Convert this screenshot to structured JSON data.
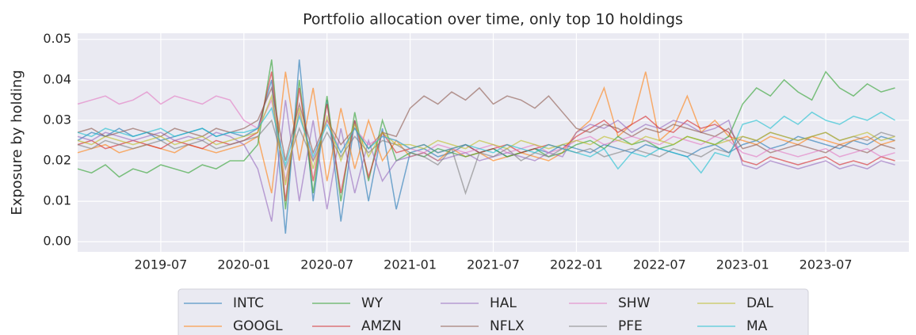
{
  "chart_data": {
    "type": "line",
    "title": "Portfolio allocation over time, only top 10 holdings",
    "ylabel": "Exposure by holding",
    "x": [
      "2019-01",
      "2019-02",
      "2019-03",
      "2019-04",
      "2019-05",
      "2019-06",
      "2019-07",
      "2019-08",
      "2019-09",
      "2019-10",
      "2019-11",
      "2019-12",
      "2020-01",
      "2020-02",
      "2020-03",
      "2020-04",
      "2020-05",
      "2020-06",
      "2020-07",
      "2020-08",
      "2020-09",
      "2020-10",
      "2020-11",
      "2020-12",
      "2021-01",
      "2021-02",
      "2021-03",
      "2021-04",
      "2021-05",
      "2021-06",
      "2021-07",
      "2021-08",
      "2021-09",
      "2021-10",
      "2021-11",
      "2021-12",
      "2022-01",
      "2022-02",
      "2022-03",
      "2022-04",
      "2022-05",
      "2022-06",
      "2022-07",
      "2022-08",
      "2022-09",
      "2022-10",
      "2022-11",
      "2022-12",
      "2023-01",
      "2023-02",
      "2023-03",
      "2023-04",
      "2023-05",
      "2023-06",
      "2023-07",
      "2023-08",
      "2023-09",
      "2023-10",
      "2023-11",
      "2023-12"
    ],
    "xlim": [
      "2019-01",
      "2024-01"
    ],
    "xticks": [
      "2019-07",
      "2020-01",
      "2020-07",
      "2021-01",
      "2021-07",
      "2022-01",
      "2022-07",
      "2023-01",
      "2023-07"
    ],
    "ylim": [
      -0.0025,
      0.0515
    ],
    "yticks": [
      {
        "value": 0,
        "label": "0.00"
      },
      0.01,
      0.02,
      0.03,
      0.04,
      0.05
    ],
    "grid": true,
    "legend": "lower center",
    "series": [
      {
        "name": "INTC",
        "color": "#1f77b4",
        "values": [
          0.025,
          0.027,
          0.026,
          0.028,
          0.026,
          0.027,
          0.025,
          0.026,
          0.027,
          0.028,
          0.026,
          0.027,
          0.026,
          0.028,
          0.04,
          0.002,
          0.045,
          0.01,
          0.035,
          0.005,
          0.03,
          0.01,
          0.028,
          0.008,
          0.022,
          0.023,
          0.021,
          0.022,
          0.024,
          0.022,
          0.023,
          0.021,
          0.022,
          0.023,
          0.022,
          0.024,
          0.023,
          0.022,
          0.024,
          0.023,
          0.022,
          0.024,
          0.023,
          0.022,
          0.021,
          0.023,
          0.024,
          0.022,
          0.024,
          0.025,
          0.023,
          0.024,
          0.026,
          0.025,
          0.024,
          0.023,
          0.025,
          0.024,
          0.026,
          0.025
        ]
      },
      {
        "name": "GOOGL",
        "color": "#ff7f0e",
        "values": [
          0.022,
          0.023,
          0.024,
          0.022,
          0.023,
          0.024,
          0.023,
          0.022,
          0.024,
          0.023,
          0.022,
          0.023,
          0.024,
          0.026,
          0.012,
          0.042,
          0.02,
          0.038,
          0.015,
          0.033,
          0.018,
          0.03,
          0.02,
          0.025,
          0.021,
          0.022,
          0.02,
          0.023,
          0.021,
          0.022,
          0.02,
          0.021,
          0.022,
          0.021,
          0.02,
          0.022,
          0.027,
          0.03,
          0.038,
          0.026,
          0.029,
          0.042,
          0.025,
          0.028,
          0.036,
          0.027,
          0.03,
          0.026,
          0.025,
          0.024,
          0.026,
          0.025,
          0.024,
          0.026,
          0.025,
          0.024,
          0.025,
          0.026,
          0.024,
          0.025
        ]
      },
      {
        "name": "WY",
        "color": "#2ca02c",
        "values": [
          0.018,
          0.017,
          0.019,
          0.016,
          0.018,
          0.017,
          0.019,
          0.018,
          0.017,
          0.019,
          0.018,
          0.02,
          0.02,
          0.024,
          0.045,
          0.008,
          0.04,
          0.012,
          0.036,
          0.01,
          0.032,
          0.015,
          0.03,
          0.02,
          0.022,
          0.021,
          0.023,
          0.022,
          0.021,
          0.022,
          0.023,
          0.021,
          0.022,
          0.023,
          0.021,
          0.022,
          0.024,
          0.025,
          0.023,
          0.026,
          0.024,
          0.025,
          0.023,
          0.024,
          0.026,
          0.025,
          0.024,
          0.026,
          0.034,
          0.038,
          0.036,
          0.04,
          0.037,
          0.035,
          0.042,
          0.038,
          0.036,
          0.039,
          0.037,
          0.038
        ]
      },
      {
        "name": "AMZN",
        "color": "#d62728",
        "values": [
          0.024,
          0.025,
          0.023,
          0.024,
          0.025,
          0.024,
          0.023,
          0.025,
          0.024,
          0.023,
          0.025,
          0.024,
          0.025,
          0.027,
          0.042,
          0.01,
          0.038,
          0.015,
          0.034,
          0.012,
          0.03,
          0.016,
          0.027,
          0.022,
          0.023,
          0.024,
          0.022,
          0.023,
          0.024,
          0.022,
          0.023,
          0.024,
          0.022,
          0.023,
          0.024,
          0.023,
          0.026,
          0.028,
          0.03,
          0.027,
          0.029,
          0.031,
          0.028,
          0.027,
          0.03,
          0.028,
          0.029,
          0.027,
          0.02,
          0.019,
          0.021,
          0.02,
          0.019,
          0.02,
          0.021,
          0.019,
          0.02,
          0.019,
          0.021,
          0.02
        ]
      },
      {
        "name": "HAL",
        "color": "#9467bd",
        "values": [
          0.026,
          0.025,
          0.027,
          0.026,
          0.025,
          0.026,
          0.027,
          0.025,
          0.026,
          0.025,
          0.027,
          0.026,
          0.024,
          0.018,
          0.005,
          0.035,
          0.01,
          0.03,
          0.008,
          0.028,
          0.012,
          0.025,
          0.015,
          0.02,
          0.021,
          0.022,
          0.02,
          0.021,
          0.022,
          0.02,
          0.021,
          0.022,
          0.021,
          0.02,
          0.022,
          0.021,
          0.027,
          0.029,
          0.028,
          0.03,
          0.027,
          0.029,
          0.028,
          0.03,
          0.029,
          0.027,
          0.028,
          0.03,
          0.019,
          0.018,
          0.02,
          0.019,
          0.018,
          0.019,
          0.02,
          0.018,
          0.019,
          0.018,
          0.02,
          0.019
        ]
      },
      {
        "name": "NFLX",
        "color": "#8c564b",
        "values": [
          0.027,
          0.028,
          0.026,
          0.027,
          0.028,
          0.027,
          0.026,
          0.028,
          0.027,
          0.026,
          0.028,
          0.027,
          0.028,
          0.03,
          0.038,
          0.02,
          0.034,
          0.022,
          0.03,
          0.024,
          0.028,
          0.023,
          0.027,
          0.026,
          0.033,
          0.036,
          0.034,
          0.037,
          0.035,
          0.038,
          0.034,
          0.036,
          0.035,
          0.033,
          0.036,
          0.032,
          0.028,
          0.027,
          0.029,
          0.028,
          0.026,
          0.028,
          0.027,
          0.029,
          0.028,
          0.027,
          0.026,
          0.028,
          0.023,
          0.024,
          0.022,
          0.023,
          0.024,
          0.023,
          0.022,
          0.024,
          0.023,
          0.022,
          0.024,
          0.023
        ]
      },
      {
        "name": "SHW",
        "color": "#e377c2",
        "values": [
          0.034,
          0.035,
          0.036,
          0.034,
          0.035,
          0.037,
          0.034,
          0.036,
          0.035,
          0.034,
          0.036,
          0.035,
          0.03,
          0.028,
          0.035,
          0.015,
          0.032,
          0.02,
          0.03,
          0.022,
          0.028,
          0.024,
          0.026,
          0.025,
          0.023,
          0.022,
          0.024,
          0.023,
          0.022,
          0.023,
          0.024,
          0.022,
          0.023,
          0.024,
          0.022,
          0.023,
          0.025,
          0.026,
          0.024,
          0.025,
          0.026,
          0.025,
          0.024,
          0.026,
          0.025,
          0.024,
          0.026,
          0.025,
          0.022,
          0.021,
          0.023,
          0.022,
          0.021,
          0.022,
          0.023,
          0.021,
          0.022,
          0.023,
          0.021,
          0.022
        ]
      },
      {
        "name": "PFE",
        "color": "#7f7f7f",
        "values": [
          0.024,
          0.023,
          0.025,
          0.024,
          0.023,
          0.024,
          0.025,
          0.023,
          0.024,
          0.025,
          0.023,
          0.024,
          0.025,
          0.026,
          0.03,
          0.018,
          0.028,
          0.02,
          0.027,
          0.021,
          0.026,
          0.022,
          0.025,
          0.024,
          0.022,
          0.021,
          0.019,
          0.023,
          0.012,
          0.022,
          0.021,
          0.023,
          0.02,
          0.022,
          0.021,
          0.023,
          0.022,
          0.023,
          0.021,
          0.022,
          0.023,
          0.022,
          0.021,
          0.023,
          0.022,
          0.021,
          0.023,
          0.022,
          0.026,
          0.025,
          0.027,
          0.026,
          0.025,
          0.026,
          0.027,
          0.025,
          0.026,
          0.025,
          0.027,
          0.026
        ]
      },
      {
        "name": "DAL",
        "color": "#bcbd22",
        "values": [
          0.025,
          0.024,
          0.026,
          0.025,
          0.024,
          0.025,
          0.026,
          0.024,
          0.025,
          0.026,
          0.024,
          0.025,
          0.026,
          0.027,
          0.036,
          0.014,
          0.033,
          0.018,
          0.031,
          0.02,
          0.029,
          0.021,
          0.027,
          0.024,
          0.024,
          0.023,
          0.025,
          0.024,
          0.023,
          0.025,
          0.024,
          0.023,
          0.025,
          0.024,
          0.023,
          0.024,
          0.025,
          0.024,
          0.026,
          0.025,
          0.024,
          0.026,
          0.025,
          0.024,
          0.026,
          0.025,
          0.024,
          0.025,
          0.026,
          0.025,
          0.027,
          0.026,
          0.025,
          0.026,
          0.027,
          0.025,
          0.026,
          0.027,
          0.025,
          0.026
        ]
      },
      {
        "name": "MA",
        "color": "#17becf",
        "values": [
          0.027,
          0.026,
          0.028,
          0.027,
          0.026,
          0.027,
          0.028,
          0.026,
          0.027,
          0.028,
          0.026,
          0.027,
          0.027,
          0.028,
          0.033,
          0.019,
          0.031,
          0.021,
          0.029,
          0.022,
          0.028,
          0.023,
          0.026,
          0.025,
          0.023,
          0.024,
          0.022,
          0.023,
          0.024,
          0.023,
          0.022,
          0.024,
          0.023,
          0.022,
          0.024,
          0.023,
          0.022,
          0.021,
          0.023,
          0.018,
          0.022,
          0.021,
          0.023,
          0.022,
          0.021,
          0.017,
          0.022,
          0.021,
          0.029,
          0.03,
          0.028,
          0.031,
          0.029,
          0.032,
          0.03,
          0.029,
          0.031,
          0.03,
          0.032,
          0.03
        ]
      }
    ]
  }
}
